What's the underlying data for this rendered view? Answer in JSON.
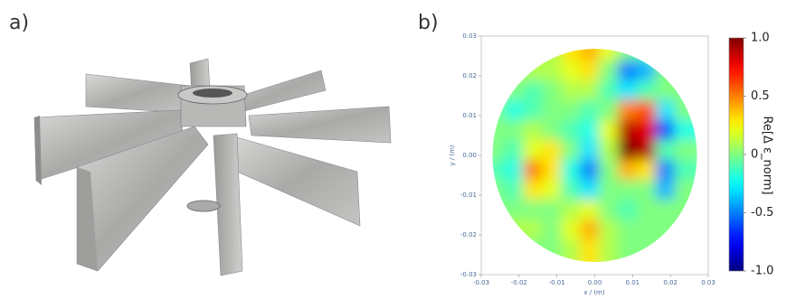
{
  "panels": {
    "a": "a)",
    "b": "b)"
  },
  "chart_data": {
    "type": "heatmap",
    "xlabel": "x / (m)",
    "ylabel": "y / (m)",
    "colorbar_label": "Re[Δ ε_norm]",
    "colormap": "jet",
    "xlim": [
      -0.03,
      0.03
    ],
    "ylim": [
      -0.03,
      0.03
    ],
    "xticks": [
      -0.03,
      -0.02,
      -0.01,
      {
        "value": 0,
        "label": "0.00"
      },
      0.01,
      0.02,
      0.03
    ],
    "yticks": [
      -0.03,
      -0.02,
      -0.01,
      {
        "value": 0,
        "label": "0.00"
      },
      0.01,
      0.02,
      0.03
    ],
    "zlim": [
      -1,
      1
    ],
    "zticks": [
      {
        "value": 1,
        "label": "1.0"
      },
      0.5,
      0,
      -0.5,
      {
        "value": -1,
        "label": "-1.0"
      }
    ],
    "x": [
      -0.025,
      -0.02,
      -0.015,
      -0.01,
      -0.005,
      0,
      0.005,
      0.01,
      0.015,
      0.02,
      0.025
    ],
    "y": [
      0.025,
      0.02,
      0.015,
      0.01,
      0.005,
      0,
      -0.005,
      -0.01,
      -0.015,
      -0.02,
      -0.025
    ],
    "z": [
      [
        0,
        0,
        0.1,
        0.1,
        0.3,
        0.4,
        0.2,
        0,
        -0.1,
        0,
        0
      ],
      [
        0,
        0.1,
        0.1,
        0.1,
        0.2,
        0.3,
        0,
        -0.5,
        -0.4,
        0,
        0
      ],
      [
        0,
        0,
        -0.1,
        0,
        0.1,
        0.1,
        -0.1,
        -0.3,
        -0.1,
        0,
        0
      ],
      [
        0,
        -0.2,
        -0.1,
        0,
        0,
        -0.1,
        0,
        0.5,
        0.6,
        -0.3,
        0
      ],
      [
        0,
        0,
        0.1,
        0,
        -0.1,
        -0.2,
        0.2,
        0.9,
        0.8,
        -0.6,
        -0.2
      ],
      [
        0,
        -0.1,
        0.2,
        0.3,
        0,
        -0.3,
        0.1,
        1.0,
        0.9,
        -0.1,
        0
      ],
      [
        -0.1,
        -0.2,
        0.5,
        0.3,
        -0.2,
        -0.5,
        0,
        0.4,
        0.3,
        -0.5,
        -0.1
      ],
      [
        0,
        -0.1,
        0.3,
        0.2,
        -0.1,
        -0.3,
        0,
        0,
        0,
        -0.4,
        0
      ],
      [
        0,
        0,
        0,
        0,
        0.1,
        0.2,
        0,
        -0.1,
        0,
        0,
        0
      ],
      [
        0,
        0.1,
        0.1,
        0,
        0.2,
        0.4,
        0.1,
        0,
        0,
        0,
        0
      ],
      [
        0,
        0,
        0,
        0,
        0.1,
        0.3,
        0.1,
        0,
        0,
        0,
        0
      ]
    ]
  }
}
